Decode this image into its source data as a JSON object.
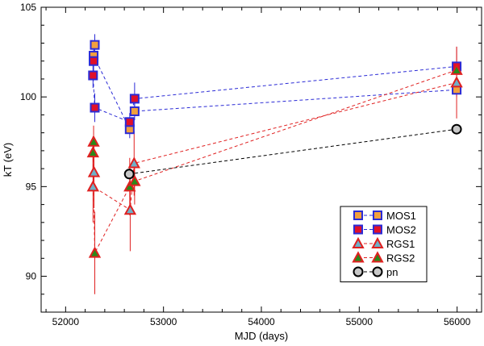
{
  "chart_data": {
    "type": "scatter",
    "xlabel": "MJD (days)",
    "ylabel": "kT (eV)",
    "xlim": [
      51750,
      56250
    ],
    "ylim": [
      88,
      105
    ],
    "xticks": [
      52000,
      53000,
      54000,
      55000,
      56000
    ],
    "yticks": [
      90,
      95,
      100,
      105
    ],
    "grid": false,
    "legend_position": "bottom-right",
    "series": [
      {
        "name": "MOS1",
        "marker": "square",
        "fill": "#f2a03d",
        "edge": "#2b2bd6",
        "line": "#2b2bd6",
        "points": [
          {
            "x": 52298,
            "y": 102.9,
            "err": 0.6
          },
          {
            "x": 52286,
            "y": 102.3,
            "err": 0.6
          },
          {
            "x": 52655,
            "y": 98.2,
            "err": 0.5
          },
          {
            "x": 52705,
            "y": 99.2,
            "err": 0.5
          },
          {
            "x": 55995,
            "y": 100.4,
            "err": 0.4
          }
        ]
      },
      {
        "name": "MOS2",
        "marker": "square",
        "fill": "#e0102a",
        "edge": "#2b2bd6",
        "line": "#2b2bd6",
        "points": [
          {
            "x": 52286,
            "y": 102.0,
            "err": 0.7
          },
          {
            "x": 52280,
            "y": 101.2,
            "err": 0.7
          },
          {
            "x": 52298,
            "y": 99.4,
            "err": 0.8
          },
          {
            "x": 52655,
            "y": 98.6,
            "err": 0.5
          },
          {
            "x": 52705,
            "y": 99.9,
            "err": 0.9
          },
          {
            "x": 55995,
            "y": 101.7,
            "err": 1.1
          }
        ]
      },
      {
        "name": "RGS1",
        "marker": "triangle",
        "fill": "#6fb0c8",
        "edge": "#e02020",
        "line": "#e02020",
        "points": [
          {
            "x": 52290,
            "y": 95.8,
            "err": 2.0
          },
          {
            "x": 52280,
            "y": 95.0,
            "err": 2.0
          },
          {
            "x": 52660,
            "y": 93.7,
            "err": 2.3
          },
          {
            "x": 52700,
            "y": 96.3,
            "err": 1.8
          },
          {
            "x": 55995,
            "y": 100.8,
            "err": 2.0
          }
        ]
      },
      {
        "name": "RGS2",
        "marker": "triangle",
        "fill": "#2a8a1a",
        "edge": "#e02020",
        "line": "#e02020",
        "points": [
          {
            "x": 52286,
            "y": 97.5,
            "err": 0.9
          },
          {
            "x": 52280,
            "y": 96.9,
            "err": 0.9
          },
          {
            "x": 52298,
            "y": 91.3,
            "err": 2.3
          },
          {
            "x": 52655,
            "y": 95.0,
            "err": 1.6
          },
          {
            "x": 52705,
            "y": 95.3,
            "err": 1.3
          },
          {
            "x": 55995,
            "y": 101.5,
            "err": 1.3
          }
        ]
      },
      {
        "name": "pn",
        "marker": "circle",
        "fill": "#c8c8c8",
        "edge": "#000000",
        "line": "#000000",
        "points": [
          {
            "x": 52650,
            "y": 95.7,
            "err": 0
          },
          {
            "x": 55995,
            "y": 98.2,
            "err": 0
          }
        ]
      }
    ]
  }
}
